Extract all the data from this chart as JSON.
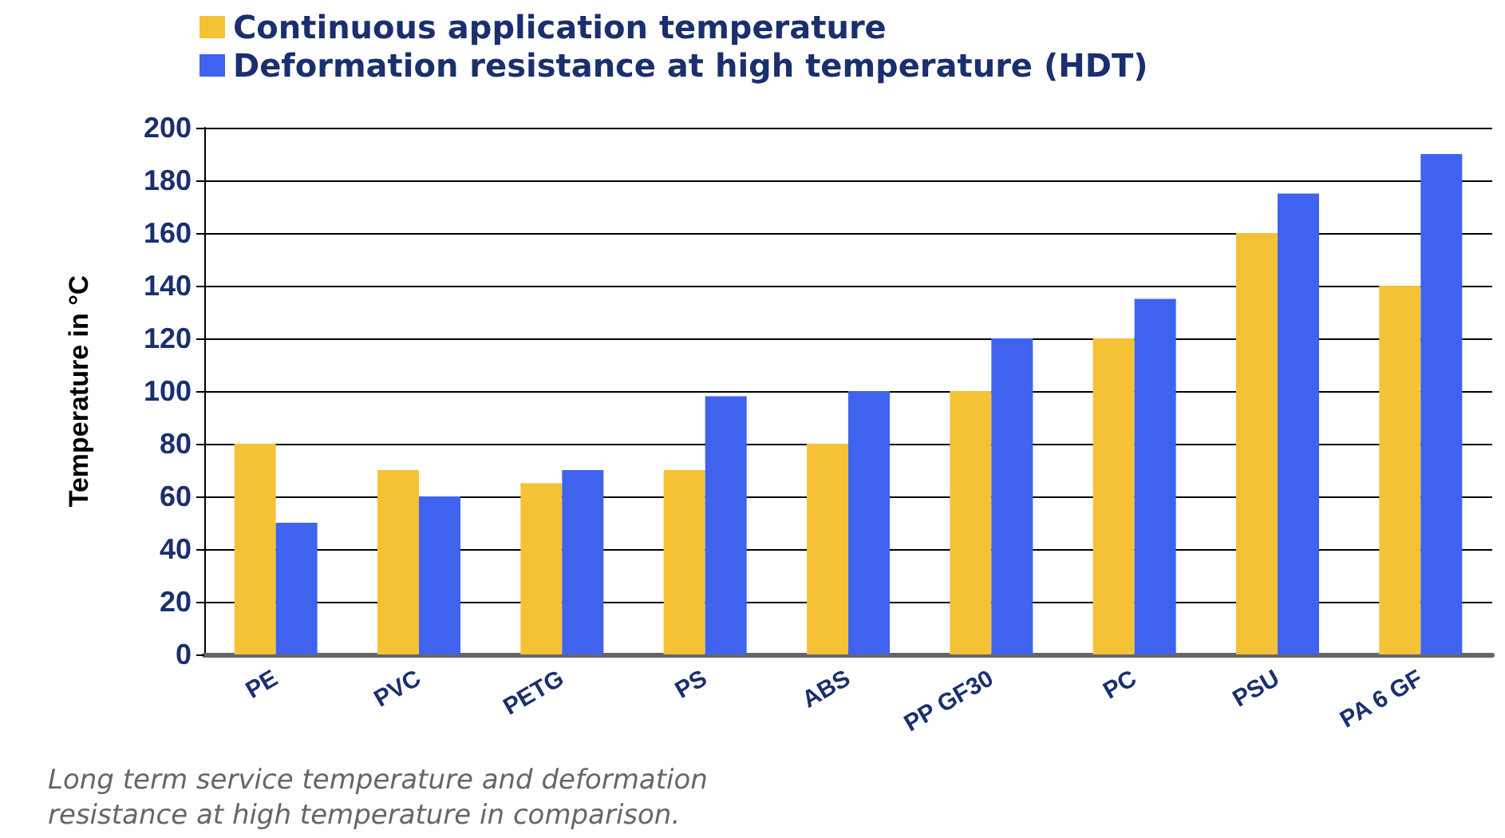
{
  "chart_data": {
    "type": "bar",
    "ylabel": "Temperature in °C",
    "categories": [
      "PE",
      "PVC",
      "PETG",
      "PS",
      "ABS",
      "PP GF30",
      "PC",
      "PSU",
      "PA 6 GF"
    ],
    "series": [
      {
        "name": "Continuous application temperature",
        "color": "#f5c236",
        "values": [
          80,
          70,
          65,
          70,
          80,
          100,
          120,
          160,
          140
        ]
      },
      {
        "name": "Deformation resistance at high temperature (HDT)",
        "color": "#3f63ee",
        "values": [
          50,
          60,
          70,
          98,
          100,
          120,
          135,
          175,
          190
        ]
      }
    ],
    "ylim": [
      0,
      200
    ],
    "yticks": [
      0,
      20,
      40,
      60,
      80,
      100,
      120,
      140,
      160,
      180,
      200
    ],
    "grid": "y",
    "legend": "top",
    "annotations": [
      "Long term service temperature and deformation resistance at high temperature in comparison."
    ]
  }
}
